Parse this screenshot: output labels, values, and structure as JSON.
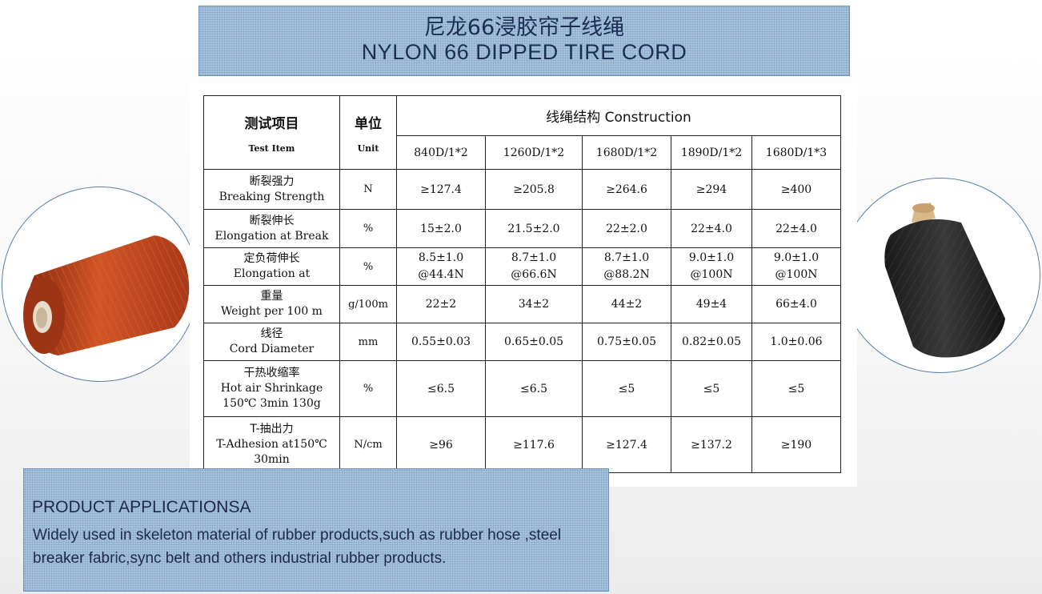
{
  "title": {
    "cn": "尼龙66浸胶帘子线绳",
    "en": "NYLON 66 DIPPED TIRE CORD"
  },
  "table": {
    "header": {
      "item_cn": "测试项目",
      "item_en": "Test Item",
      "unit_cn": "单位",
      "unit_en": "Unit",
      "construction": "线绳结构 Construction",
      "columns": [
        "840D/1*2",
        "1260D/1*2",
        "1680D/1*2",
        "1890D/1*2",
        "1680D/1*3"
      ]
    },
    "rows": [
      {
        "name_cn": "断裂强力",
        "name_en": "Breaking Strength",
        "name_en2": "",
        "unit": "N",
        "values": [
          "≥127.4",
          "≥205.8",
          "≥264.6",
          "≥294",
          "≥400"
        ],
        "values2": []
      },
      {
        "name_cn": "断裂伸长",
        "name_en": "Elongation at Break",
        "name_en2": "",
        "unit": "%",
        "values": [
          "15±2.0",
          "21.5±2.0",
          "22±2.0",
          "22±4.0",
          "22±4.0"
        ],
        "values2": []
      },
      {
        "name_cn": "定负荷伸长",
        "name_en": "Elongation at",
        "name_en2": "",
        "unit": "%",
        "values": [
          "8.5±1.0",
          "8.7±1.0",
          "8.7±1.0",
          "9.0±1.0",
          "9.0±1.0"
        ],
        "values2": [
          "@44.4N",
          "@66.6N",
          "@88.2N",
          "@100N",
          "@100N"
        ]
      },
      {
        "name_cn": "重量",
        "name_en": "Weight per 100 m",
        "name_en2": "",
        "unit": "g/100m",
        "values": [
          "22±2",
          "34±2",
          "44±2",
          "49±4",
          "66±4.0"
        ],
        "values2": []
      },
      {
        "name_cn": "线径",
        "name_en": "Cord Diameter",
        "name_en2": "",
        "unit": "mm",
        "values": [
          "0.55±0.03",
          "0.65±0.05",
          "0.75±0.05",
          "0.82±0.05",
          "1.0±0.06"
        ],
        "values2": []
      },
      {
        "name_cn": "干热收缩率",
        "name_en": "Hot air Shrinkage",
        "name_en2": "150℃ 3min 130g",
        "unit": "%",
        "values": [
          "≤6.5",
          "≤6.5",
          "≤5",
          "≤5",
          "≤5"
        ],
        "values2": []
      },
      {
        "name_cn": "T-抽出力",
        "name_en": "T-Adhesion at150℃",
        "name_en2": "30min",
        "unit": "N/cm",
        "values": [
          "≥96",
          "≥117.6",
          "≥127.4",
          "≥137.2",
          "≥190"
        ],
        "values2": []
      }
    ]
  },
  "images": {
    "left": {
      "icon": "orange-cord-spool-icon",
      "color": "#b8401c"
    },
    "right": {
      "icon": "black-cord-spool-icon",
      "color": "#2a2a2a"
    }
  },
  "applications": {
    "title": "PRODUCT APPLICATIONSA",
    "text": " Widely used in skeleton material of rubber products,such as  rubber hose ,steel breaker fabric,sync belt and others industrial rubber products."
  }
}
